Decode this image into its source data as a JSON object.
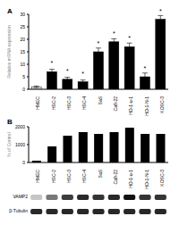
{
  "chart_data": [
    {
      "type": "bar",
      "title": "A",
      "y_label": "Relative mRNA expression",
      "categories": [
        "HMEC",
        "HSC-2",
        "HSC-3",
        "HSC-4",
        "SaS",
        "Ca9-22",
        "HO-1-u-1",
        "HO-1-N-1",
        "KOSC-3"
      ],
      "values": [
        1,
        7,
        4,
        3,
        15,
        19,
        17,
        5,
        28
      ],
      "errors": [
        0.3,
        1,
        0.8,
        0.7,
        1.5,
        1.2,
        1.5,
        1.5,
        1.5
      ],
      "annotations": [
        {
          "category": "HSC-2",
          "text": "*"
        },
        {
          "category": "HSC-3",
          "text": "*"
        },
        {
          "category": "HSC-4",
          "text": "*"
        },
        {
          "category": "SaS",
          "text": "*"
        },
        {
          "category": "Ca9-22",
          "text": "*"
        },
        {
          "category": "HO-1-u-1",
          "text": "*"
        },
        {
          "category": "HO-1-N-1",
          "text": "*"
        },
        {
          "category": "KOSC-3",
          "text": "*"
        }
      ],
      "colors": [
        "#ffffff",
        "#000000",
        "#000000",
        "#000000",
        "#000000",
        "#000000",
        "#000000",
        "#000000",
        "#000000"
      ],
      "ylim": [
        0,
        30
      ],
      "yticks": [
        0,
        5,
        10,
        15,
        20,
        25,
        30
      ]
    },
    {
      "type": "bar",
      "title": "B",
      "y_label": "% of Control",
      "categories": [
        "HMEC",
        "HSC-2",
        "HSC-3",
        "HSC-4",
        "SaS",
        "Ca9-22",
        "HO-1-u-1",
        "HO-1-N-1",
        "KOSC-3"
      ],
      "values": [
        100,
        900,
        1500,
        1700,
        1600,
        1700,
        1950,
        1600,
        1600
      ],
      "color": "#000000",
      "ylim": [
        0,
        2000
      ],
      "yticks": [
        0,
        1000,
        2000
      ]
    }
  ],
  "blot": {
    "labels": [
      "VAMP2",
      "β-Tubulin"
    ]
  }
}
